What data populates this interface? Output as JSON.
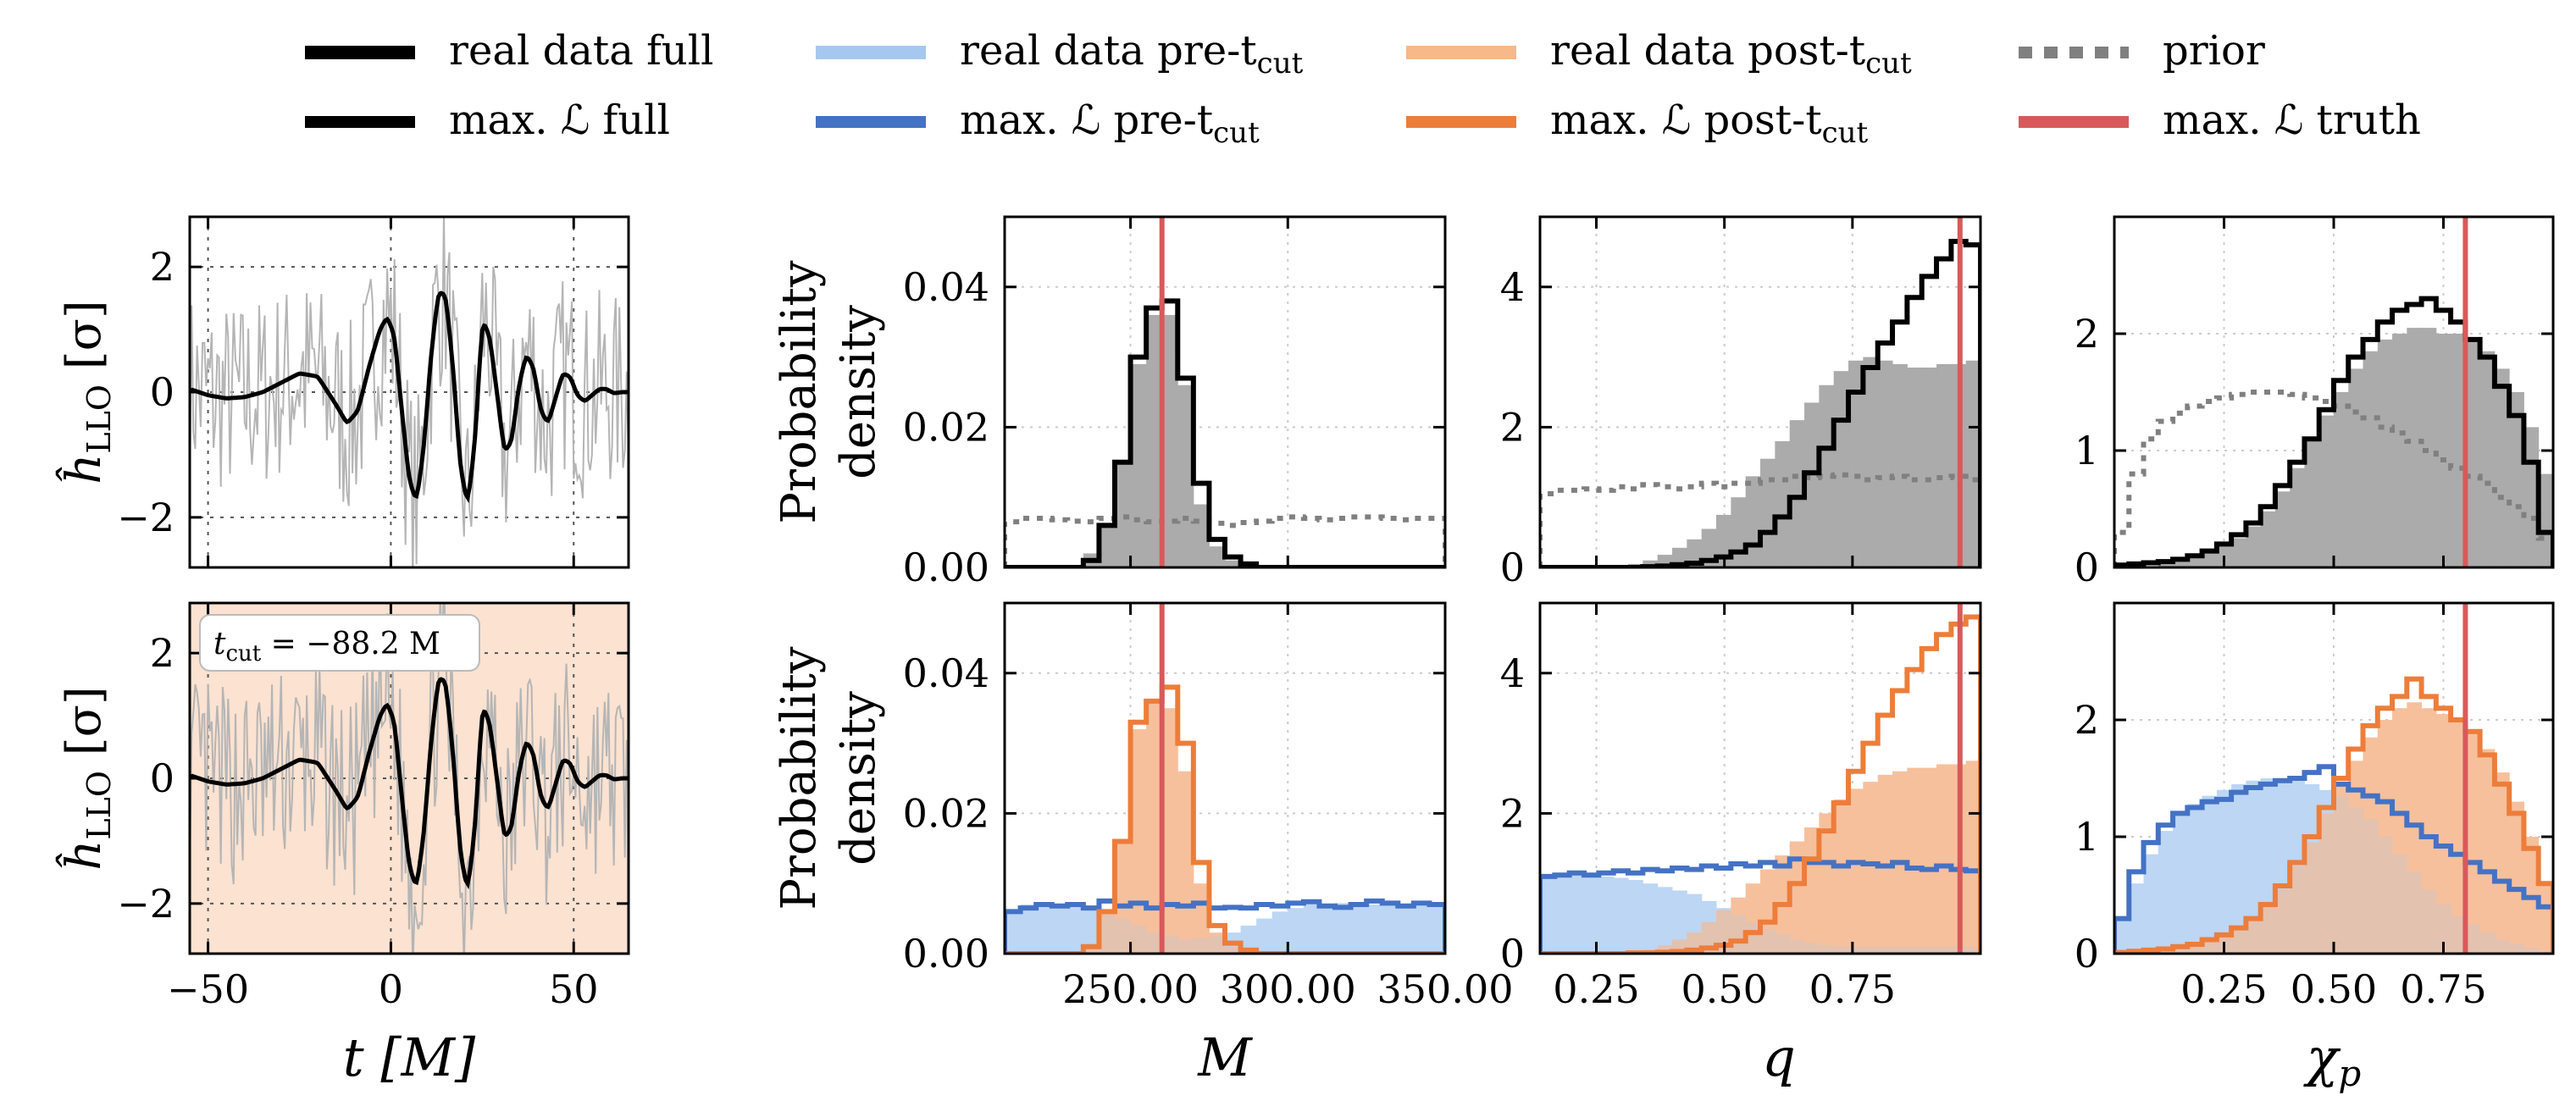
{
  "legend": [
    {
      "label": "real data full",
      "color": "#000000",
      "style": "solid-thick"
    },
    {
      "label": "max. ℒ full",
      "color": "#000000",
      "style": "solid"
    },
    {
      "label": "real data pre-t",
      "sub": "cut",
      "color": "#a6c8f0",
      "style": "solid-thick"
    },
    {
      "label": "max. ℒ pre-t",
      "sub": "cut",
      "color": "#4472c4",
      "style": "solid"
    },
    {
      "label": "real data post-t",
      "sub": "cut",
      "color": "#f7b88a",
      "style": "solid-thick"
    },
    {
      "label": "max. ℒ post-t",
      "sub": "cut",
      "color": "#ed7d3a",
      "style": "solid"
    },
    {
      "label": "prior",
      "color": "#808080",
      "style": "dotted"
    },
    {
      "label": "max. ℒ truth",
      "color": "#d9595a",
      "style": "solid"
    }
  ],
  "labels": {
    "strain_y": "ĥ",
    "strain_y_sub": "LLO",
    "strain_y_unit": "[σ]",
    "time_x": "t [M]",
    "pdf_y_line1": "Probability",
    "pdf_y_line2": "density",
    "tcut_annotation": "t",
    "tcut_sub": "cut",
    "tcut_value": "= −88.2 M"
  },
  "chart_data": [
    {
      "type": "line",
      "panel": "strain-top",
      "xlim": [
        -55,
        65
      ],
      "ylim": [
        -2.8,
        2.8
      ],
      "xticks": [
        -50,
        0,
        50
      ],
      "yticks": [
        -2,
        0,
        2
      ],
      "grid": "dotted",
      "series": [
        {
          "role": "max-L-full",
          "color": "#000000",
          "x": [
            -55,
            -50,
            -45,
            -40,
            -35,
            -30,
            -25,
            -20,
            -15,
            -12,
            -9,
            -6,
            -3,
            -1,
            1,
            3,
            5,
            7,
            9,
            11,
            13,
            15,
            17,
            19,
            21,
            23,
            25,
            27,
            29,
            31,
            33,
            35,
            37,
            39,
            41,
            43,
            45,
            47,
            49,
            51,
            53,
            55,
            57,
            59,
            61,
            63,
            65
          ],
          "y": [
            0.05,
            -0.05,
            -0.1,
            -0.08,
            0.0,
            0.15,
            0.3,
            0.25,
            -0.2,
            -0.5,
            -0.3,
            0.4,
            1.0,
            1.2,
            0.9,
            -0.3,
            -1.4,
            -1.75,
            -0.9,
            0.6,
            1.6,
            1.55,
            0.4,
            -1.2,
            -1.8,
            -0.8,
            1.15,
            0.9,
            0.0,
            -0.95,
            -0.8,
            0.1,
            0.6,
            0.4,
            -0.3,
            -0.5,
            -0.1,
            0.3,
            0.25,
            -0.05,
            -0.15,
            -0.05,
            0.05,
            0.05,
            -0.02,
            0.0,
            0.0
          ]
        }
      ]
    },
    {
      "type": "line",
      "panel": "strain-bottom",
      "xlim": [
        -55,
        65
      ],
      "ylim": [
        -2.8,
        2.8
      ],
      "xticks": [
        -50,
        0,
        50
      ],
      "yticks": [
        -2,
        0,
        2
      ],
      "grid": "dotted",
      "shaded_region_color": "#fbe2d1",
      "series": [
        {
          "role": "max-L-full",
          "color": "#000000",
          "x": [
            -55,
            -50,
            -45,
            -40,
            -35,
            -30,
            -25,
            -20,
            -15,
            -12,
            -9,
            -6,
            -3,
            -1,
            1,
            3,
            5,
            7,
            9,
            11,
            13,
            15,
            17,
            19,
            21,
            23,
            25,
            27,
            29,
            31,
            33,
            35,
            37,
            39,
            41,
            43,
            45,
            47,
            49,
            51,
            53,
            55,
            57,
            59,
            61,
            63,
            65
          ],
          "y": [
            0.05,
            -0.05,
            -0.1,
            -0.08,
            0.0,
            0.15,
            0.3,
            0.25,
            -0.2,
            -0.5,
            -0.3,
            0.4,
            1.0,
            1.2,
            0.9,
            -0.3,
            -1.4,
            -1.75,
            -0.9,
            0.6,
            1.6,
            1.55,
            0.4,
            -1.2,
            -1.8,
            -0.8,
            1.15,
            0.9,
            0.0,
            -0.95,
            -0.8,
            0.1,
            0.6,
            0.4,
            -0.3,
            -0.5,
            -0.1,
            0.3,
            0.25,
            -0.05,
            -0.15,
            -0.05,
            0.05,
            0.05,
            -0.02,
            0.0,
            0.0
          ]
        }
      ]
    },
    {
      "type": "histogram",
      "panel": "M-top",
      "xlim": [
        210,
        350
      ],
      "ylim": [
        0,
        0.05
      ],
      "yticks": [
        0.0,
        0.02,
        0.04
      ],
      "truth": 260,
      "bin_start": 210,
      "bin_width": 5,
      "filled_full": [
        0,
        0,
        0,
        0,
        0,
        0.002,
        0.006,
        0.015,
        0.029,
        0.036,
        0.036,
        0.026,
        0.009,
        0.003,
        0.001,
        0,
        0,
        0,
        0,
        0,
        0,
        0,
        0,
        0,
        0,
        0,
        0,
        0
      ],
      "step_full": [
        0,
        0,
        0,
        0,
        0,
        0.001,
        0.006,
        0.015,
        0.03,
        0.037,
        0.038,
        0.027,
        0.012,
        0.004,
        0.0015,
        0.0005,
        0,
        0,
        0,
        0,
        0,
        0,
        0,
        0,
        0,
        0,
        0,
        0
      ],
      "prior": [
        0.0065,
        0.007,
        0.007,
        0.0068,
        0.0066,
        0.0065,
        0.007,
        0.0072,
        0.0068,
        0.0065,
        0.0066,
        0.007,
        0.0066,
        0.0063,
        0.006,
        0.0064,
        0.0066,
        0.007,
        0.0072,
        0.007,
        0.0068,
        0.007,
        0.0072,
        0.0072,
        0.007,
        0.0068,
        0.007,
        0.007
      ]
    },
    {
      "type": "histogram",
      "panel": "q-top",
      "xlim": [
        0.14,
        1.0
      ],
      "ylim": [
        0,
        5
      ],
      "yticks": [
        0,
        2,
        4
      ],
      "truth": 0.96,
      "bin_start": 0.14,
      "bin_width": 0.02867,
      "filled_full": [
        0,
        0,
        0,
        0,
        0,
        0.02,
        0.05,
        0.1,
        0.18,
        0.28,
        0.4,
        0.55,
        0.75,
        1.0,
        1.3,
        1.55,
        1.8,
        2.1,
        2.35,
        2.6,
        2.8,
        2.95,
        3.0,
        2.95,
        2.9,
        2.85,
        2.85,
        2.9,
        2.9,
        2.95
      ],
      "step_full": [
        0,
        0,
        0,
        0,
        0,
        0,
        0,
        0.01,
        0.02,
        0.04,
        0.06,
        0.1,
        0.15,
        0.22,
        0.32,
        0.5,
        0.72,
        1.0,
        1.35,
        1.7,
        2.1,
        2.5,
        2.85,
        3.2,
        3.5,
        3.85,
        4.15,
        4.4,
        4.65,
        4.6
      ],
      "prior": [
        1.05,
        1.1,
        1.1,
        1.12,
        1.1,
        1.15,
        1.12,
        1.18,
        1.15,
        1.12,
        1.15,
        1.2,
        1.15,
        1.2,
        1.2,
        1.25,
        1.25,
        1.3,
        1.28,
        1.3,
        1.32,
        1.3,
        1.25,
        1.28,
        1.3,
        1.25,
        1.25,
        1.28,
        1.3,
        1.25
      ]
    },
    {
      "type": "histogram",
      "panel": "chip-top",
      "xlim": [
        0.0,
        1.0
      ],
      "ylim": [
        0,
        3
      ],
      "yticks": [
        0,
        1,
        2
      ],
      "truth": 0.8,
      "bin_start": 0.0,
      "bin_width": 0.03333,
      "filled_full": [
        0,
        0,
        0.01,
        0.03,
        0.05,
        0.08,
        0.12,
        0.18,
        0.25,
        0.35,
        0.48,
        0.65,
        0.85,
        1.1,
        1.3,
        1.5,
        1.7,
        1.85,
        1.95,
        2.0,
        2.05,
        2.05,
        2.0,
        2.0,
        1.95,
        1.85,
        1.7,
        1.5,
        1.2,
        0.8
      ],
      "step_full": [
        0.02,
        0.03,
        0.04,
        0.05,
        0.07,
        0.1,
        0.14,
        0.2,
        0.28,
        0.38,
        0.52,
        0.7,
        0.9,
        1.1,
        1.35,
        1.6,
        1.8,
        1.95,
        2.1,
        2.2,
        2.25,
        2.3,
        2.2,
        2.1,
        1.95,
        1.8,
        1.55,
        1.3,
        0.9,
        0.3
      ],
      "prior": [
        0.3,
        0.8,
        1.1,
        1.25,
        1.32,
        1.38,
        1.42,
        1.45,
        1.48,
        1.5,
        1.5,
        1.5,
        1.48,
        1.45,
        1.42,
        1.38,
        1.33,
        1.28,
        1.2,
        1.15,
        1.08,
        1.0,
        0.92,
        0.85,
        0.78,
        0.72,
        0.6,
        0.52,
        0.42,
        0.25
      ]
    },
    {
      "type": "histogram",
      "panel": "M-bottom",
      "xlim": [
        210,
        350
      ],
      "ylim": [
        0,
        0.05
      ],
      "xticks": [
        250,
        300,
        350
      ],
      "yticks": [
        0.0,
        0.02,
        0.04
      ],
      "truth": 260,
      "bin_start": 210,
      "bin_width": 5,
      "filled_pre": [
        0.006,
        0.007,
        0.0072,
        0.007,
        0.0068,
        0.0065,
        0.006,
        0.005,
        0.004,
        0.003,
        0.0025,
        0.002,
        0.0022,
        0.0025,
        0.003,
        0.004,
        0.005,
        0.006,
        0.0065,
        0.007,
        0.007,
        0.0072,
        0.0068,
        0.007,
        0.0072,
        0.007,
        0.0068,
        0.007
      ],
      "step_pre": [
        0.006,
        0.0065,
        0.007,
        0.0068,
        0.007,
        0.0065,
        0.0075,
        0.0068,
        0.0072,
        0.0065,
        0.007,
        0.0068,
        0.0072,
        0.0065,
        0.0066,
        0.0065,
        0.007,
        0.0068,
        0.0072,
        0.0074,
        0.0068,
        0.0066,
        0.007,
        0.0075,
        0.0072,
        0.0068,
        0.0072,
        0.007
      ],
      "filled_post": [
        0,
        0,
        0,
        0,
        0,
        0.001,
        0.006,
        0.016,
        0.032,
        0.036,
        0.035,
        0.026,
        0.01,
        0.003,
        0.001,
        0,
        0,
        0,
        0,
        0,
        0,
        0,
        0,
        0,
        0,
        0,
        0,
        0
      ],
      "step_post": [
        0,
        0,
        0,
        0,
        0,
        0.001,
        0.006,
        0.016,
        0.033,
        0.036,
        0.038,
        0.03,
        0.013,
        0.004,
        0.0015,
        0.0005,
        0,
        0,
        0,
        0,
        0,
        0,
        0,
        0,
        0,
        0,
        0,
        0
      ]
    },
    {
      "type": "histogram",
      "panel": "q-bottom",
      "xlim": [
        0.14,
        1.0
      ],
      "ylim": [
        0,
        5
      ],
      "xticks": [
        0.25,
        0.5,
        0.75
      ],
      "yticks": [
        0,
        2,
        4
      ],
      "truth": 0.96,
      "bin_start": 0.14,
      "bin_width": 0.02867,
      "filled_pre": [
        1.1,
        1.12,
        1.15,
        1.12,
        1.1,
        1.08,
        1.05,
        1.0,
        0.95,
        0.9,
        0.85,
        0.75,
        0.65,
        0.55,
        0.45,
        0.35,
        0.28,
        0.2,
        0.15,
        0.12,
        0.1,
        0.1,
        0.1,
        0.1,
        0.1,
        0.1,
        0.1,
        0.1,
        0.1,
        0.1
      ],
      "step_pre": [
        1.1,
        1.12,
        1.15,
        1.12,
        1.15,
        1.18,
        1.15,
        1.2,
        1.18,
        1.22,
        1.2,
        1.25,
        1.22,
        1.28,
        1.25,
        1.3,
        1.25,
        1.35,
        1.3,
        1.3,
        1.25,
        1.3,
        1.28,
        1.25,
        1.3,
        1.22,
        1.2,
        1.25,
        1.2,
        1.18
      ],
      "filled_post": [
        0,
        0,
        0,
        0,
        0,
        0.01,
        0.03,
        0.06,
        0.12,
        0.2,
        0.3,
        0.45,
        0.62,
        0.8,
        1.0,
        1.2,
        1.4,
        1.6,
        1.8,
        2.0,
        2.2,
        2.35,
        2.45,
        2.55,
        2.6,
        2.65,
        2.65,
        2.7,
        2.7,
        2.75
      ],
      "step_post": [
        0,
        0,
        0,
        0,
        0,
        0,
        0.01,
        0.01,
        0.02,
        0.03,
        0.05,
        0.08,
        0.12,
        0.18,
        0.3,
        0.45,
        0.7,
        1.0,
        1.35,
        1.75,
        2.15,
        2.6,
        3.0,
        3.4,
        3.75,
        4.05,
        4.35,
        4.55,
        4.7,
        4.8
      ]
    },
    {
      "type": "histogram",
      "panel": "chip-bottom",
      "xlim": [
        0.0,
        1.0
      ],
      "ylim": [
        0,
        3
      ],
      "xticks": [
        0.25,
        0.5,
        0.75
      ],
      "yticks": [
        0,
        1,
        2
      ],
      "truth": 0.8,
      "bin_start": 0.0,
      "bin_width": 0.03333,
      "filled_pre": [
        0.3,
        0.6,
        0.85,
        1.05,
        1.18,
        1.28,
        1.35,
        1.4,
        1.45,
        1.48,
        1.5,
        1.5,
        1.48,
        1.45,
        1.4,
        1.35,
        1.25,
        1.15,
        1.0,
        0.85,
        0.7,
        0.55,
        0.42,
        0.32,
        0.25,
        0.18,
        0.12,
        0.08,
        0.05,
        0.02
      ],
      "step_pre": [
        0.3,
        0.7,
        0.95,
        1.1,
        1.2,
        1.25,
        1.3,
        1.32,
        1.38,
        1.42,
        1.45,
        1.48,
        1.5,
        1.55,
        1.6,
        1.45,
        1.4,
        1.35,
        1.3,
        1.2,
        1.1,
        1.0,
        0.92,
        0.85,
        0.78,
        0.7,
        0.62,
        0.55,
        0.48,
        0.4
      ],
      "filled_post": [
        0,
        0,
        0.01,
        0.02,
        0.04,
        0.06,
        0.1,
        0.15,
        0.22,
        0.3,
        0.42,
        0.55,
        0.75,
        0.95,
        1.2,
        1.45,
        1.65,
        1.85,
        2.0,
        2.1,
        2.15,
        2.1,
        2.05,
        2.0,
        1.9,
        1.75,
        1.55,
        1.3,
        1.0,
        0.6
      ],
      "step_post": [
        0.01,
        0.02,
        0.03,
        0.04,
        0.06,
        0.08,
        0.12,
        0.16,
        0.22,
        0.3,
        0.42,
        0.58,
        0.78,
        1.0,
        1.25,
        1.5,
        1.75,
        1.95,
        2.1,
        2.2,
        2.35,
        2.2,
        2.1,
        2.0,
        1.9,
        1.7,
        1.45,
        1.2,
        0.9,
        0.6
      ]
    }
  ]
}
